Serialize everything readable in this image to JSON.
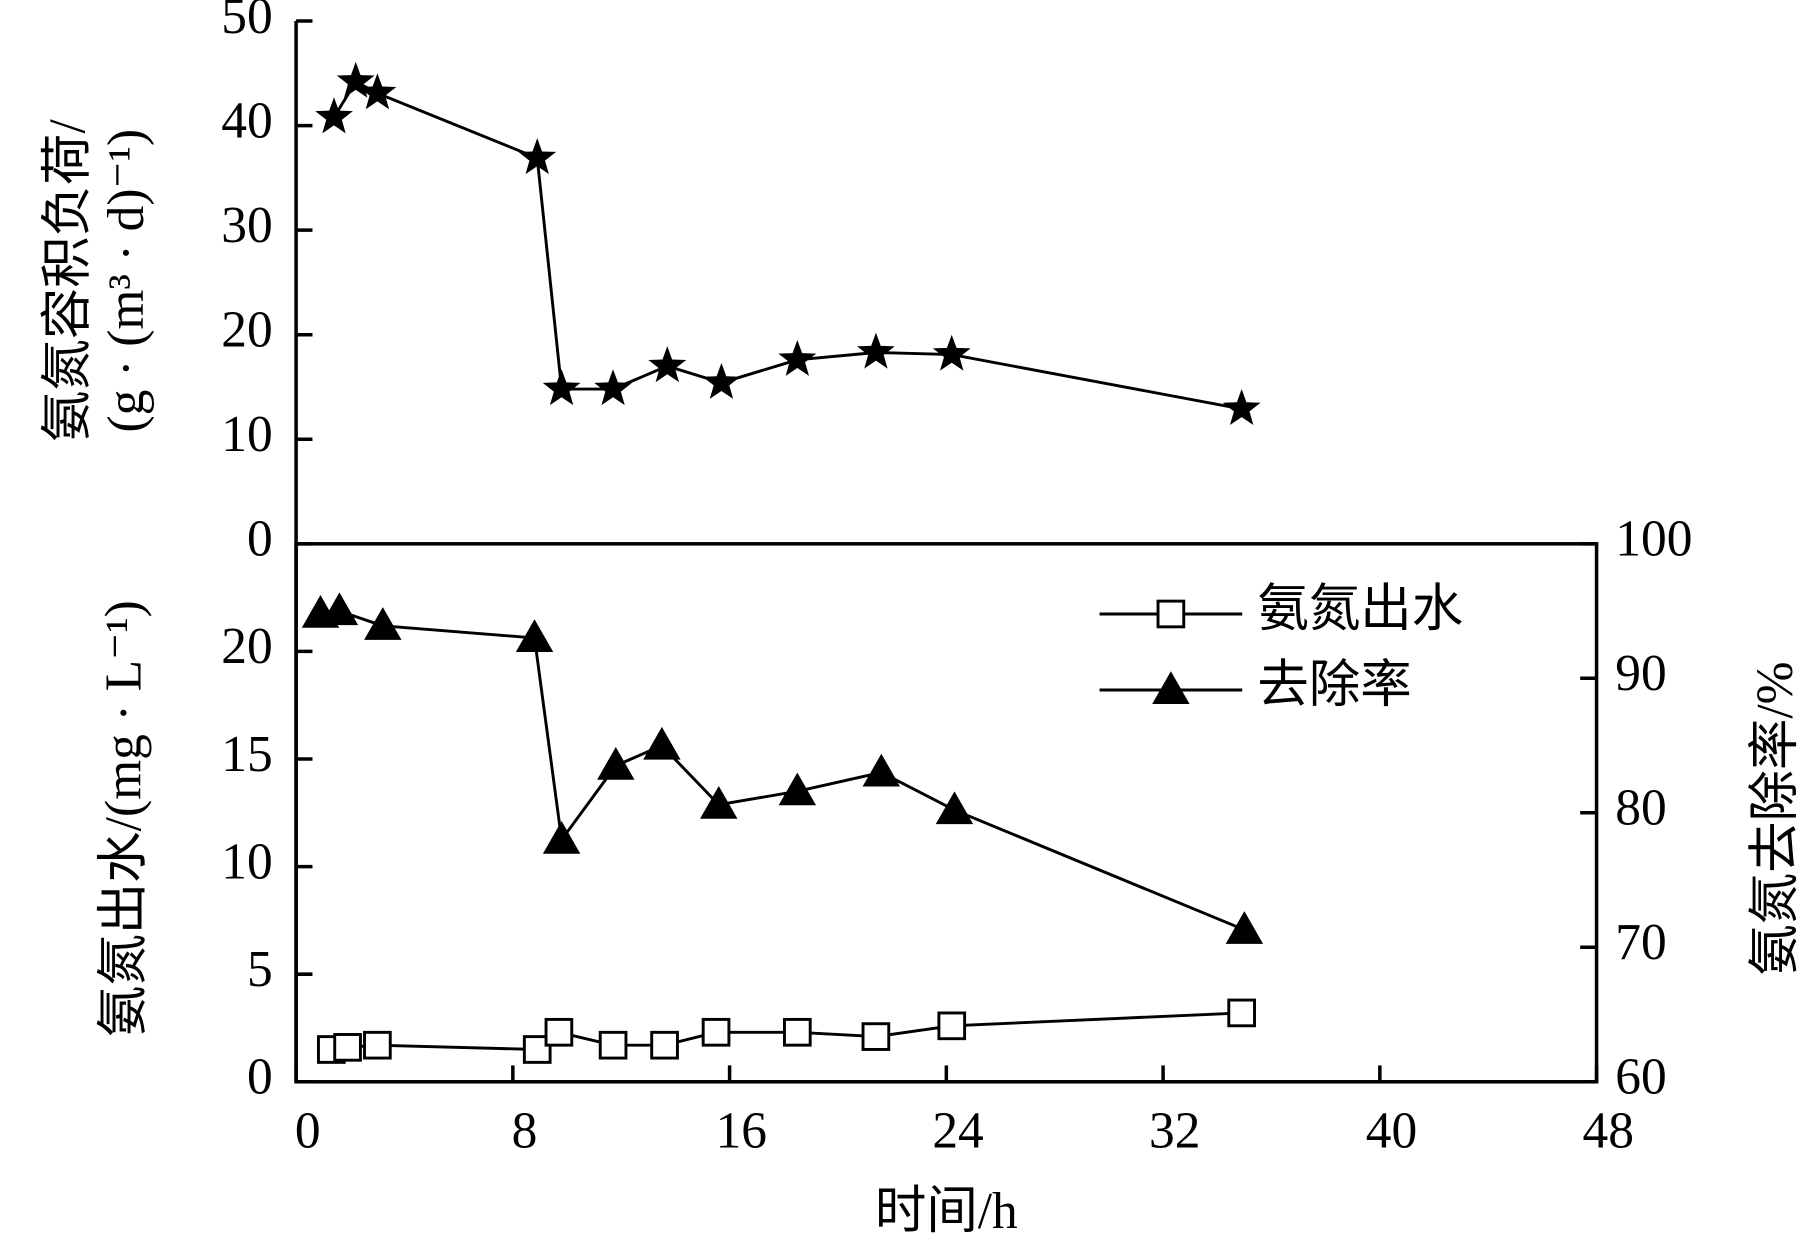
{
  "chart_data": [
    {
      "type": "line",
      "marker": "star",
      "color": "#000000",
      "ylabel": [
        "氨氮容积负荷/",
        "(g · (m³ · d)⁻¹)"
      ],
      "x": [
        1.4,
        2.2,
        3.0,
        8.9,
        9.8,
        11.7,
        13.7,
        15.7,
        18.5,
        21.4,
        24.2,
        34.9
      ],
      "values": [
        40.8,
        44.2,
        43.1,
        36.9,
        14.8,
        14.8,
        17.0,
        15.4,
        17.6,
        18.3,
        18.1,
        12.9
      ],
      "xlim": [
        0,
        48
      ],
      "ylim": [
        0,
        50
      ],
      "yticks": [
        0,
        10,
        20,
        30,
        40,
        50
      ]
    },
    {
      "type": "line",
      "color": "#000000",
      "xlabel": "时间/h",
      "ylabel": "氨氮出水/(mg · L⁻¹)",
      "y2label": "氨氮去除率/%",
      "xlim": [
        0,
        48
      ],
      "xticks": [
        0,
        8,
        16,
        24,
        32,
        40,
        48
      ],
      "ylim": [
        0,
        25
      ],
      "yticks": [
        0,
        5,
        10,
        15,
        20
      ],
      "y2lim": [
        60,
        100
      ],
      "y2ticks": [
        60,
        70,
        80,
        90,
        100
      ],
      "legend": "upper right",
      "series": [
        {
          "name": "氨氮出水",
          "marker": "square",
          "x": [
            1.3,
            1.9,
            3.0,
            8.9,
            9.7,
            11.7,
            13.6,
            15.5,
            18.5,
            21.4,
            24.2,
            34.9
          ],
          "values": [
            1.5,
            1.6,
            1.7,
            1.5,
            2.3,
            1.7,
            1.7,
            2.3,
            2.3,
            2.1,
            2.6,
            3.2
          ]
        },
        {
          "name": "去除率",
          "marker": "triangle",
          "axis": "y2",
          "x": [
            0.9,
            1.6,
            3.2,
            8.8,
            9.8,
            11.8,
            13.5,
            15.6,
            18.5,
            21.6,
            24.3,
            35.0
          ],
          "values": [
            94.8,
            95.0,
            93.9,
            93.0,
            78.0,
            83.5,
            85.0,
            80.6,
            81.6,
            83.0,
            80.2,
            71.3
          ]
        }
      ]
    }
  ]
}
